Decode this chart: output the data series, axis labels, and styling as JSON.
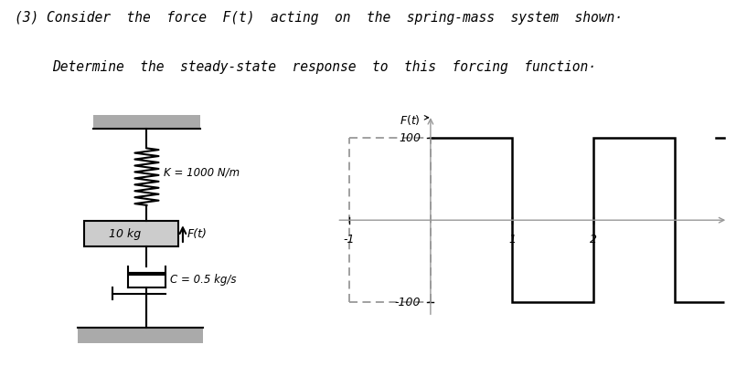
{
  "title_line1": "(3) Consider  the  force  F(t)  acting  on  the  spring-mass  system  shown·",
  "title_line2": "Determine  the  steady-state  response  to  this  forcing  function·",
  "title_fontsize": 10.5,
  "bg_color": "#ffffff",
  "spring_label": "K = 1000 N/m",
  "mass_label": "10 kg",
  "force_label": "F(t)",
  "damper_label": "C = 0.5 kg/s",
  "graph_ylabel": "F(t)",
  "square_wave_color": "#000000",
  "dashed_color": "#999999",
  "axis_color": "#999999",
  "text_color": "#000000",
  "hatch_facecolor": "#aaaaaa"
}
